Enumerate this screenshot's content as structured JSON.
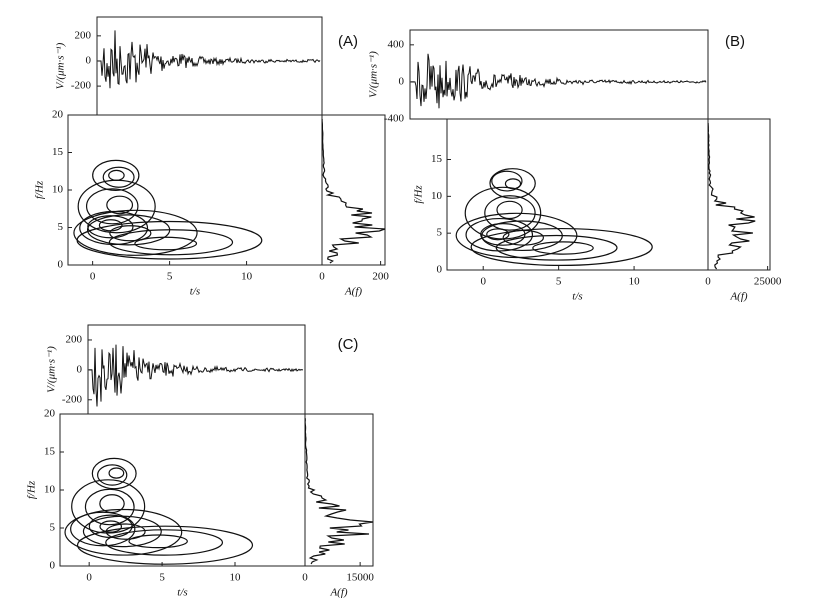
{
  "chart_data": [
    {
      "type": "seismogram-panel",
      "label": "(A)",
      "waveform": {
        "ylabel": "V/(μm·s⁻¹)",
        "ylim": [
          -430,
          350
        ],
        "yticks": [
          -200,
          0,
          200
        ]
      },
      "contour": {
        "xlabel": "t/s",
        "ylabel": "f/Hz",
        "xlim": [
          -1.6,
          14.9
        ],
        "xticks": [
          0,
          5,
          10
        ],
        "ylim": [
          0,
          20
        ],
        "yticks": [
          0,
          5,
          10,
          15,
          20
        ]
      },
      "spectrum": {
        "xlabel": "A(f)",
        "xlim": [
          0,
          215
        ],
        "xticks": [
          0,
          200
        ]
      }
    },
    {
      "type": "seismogram-panel",
      "label": "(B)",
      "waveform": {
        "ylabel": "V/(μm·s⁻¹)",
        "ylim": [
          -400,
          560
        ],
        "yticks": [
          -400,
          0,
          400
        ]
      },
      "contour": {
        "xlabel": "t/s",
        "ylabel": "f/Hz",
        "xlim": [
          -2.4,
          14.9
        ],
        "xticks": [
          0,
          5,
          10
        ],
        "ylim": [
          0,
          20.5
        ],
        "yticks": [
          0,
          5,
          10,
          15
        ]
      },
      "spectrum": {
        "xlabel": "A(f)",
        "xlim": [
          0,
          26000
        ],
        "xticks": [
          0,
          25000
        ]
      }
    },
    {
      "type": "seismogram-panel",
      "label": "(C)",
      "waveform": {
        "ylabel": "V/(μm·s⁻¹)",
        "ylim": [
          -295,
          300
        ],
        "yticks": [
          -200,
          0,
          200
        ]
      },
      "contour": {
        "xlabel": "t/s",
        "ylabel": "f/Hz",
        "xlim": [
          -2,
          14.8
        ],
        "xticks": [
          0,
          5,
          10
        ],
        "ylim": [
          0,
          20
        ],
        "yticks": [
          0,
          5,
          10,
          15,
          20
        ]
      },
      "spectrum": {
        "xlabel": "A(f)",
        "xlim": [
          0,
          18500
        ],
        "xticks": [
          0,
          15000
        ]
      }
    }
  ]
}
